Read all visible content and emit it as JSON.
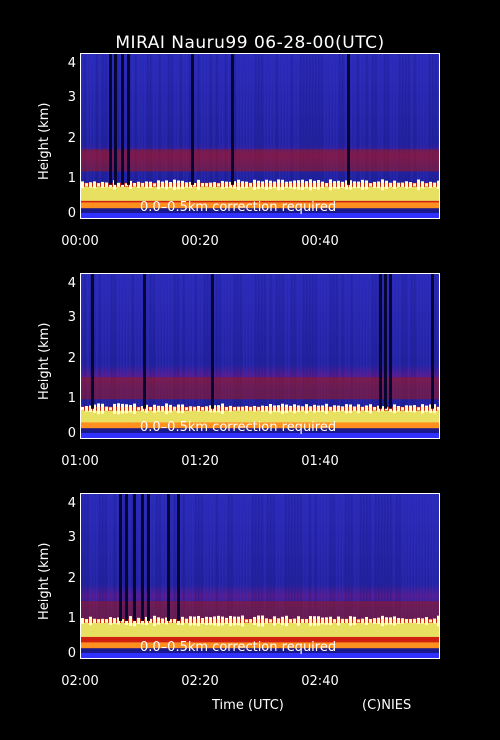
{
  "title": "MIRAI Nauru99 06-28-00(UTC)",
  "colors": {
    "background": "#000000",
    "axes": "#ffffff",
    "low_signal": "#1a1aa8",
    "mid_signal": "#c01010",
    "high_signal": "#ffffb0"
  },
  "chart_data": [
    {
      "type": "heatmap",
      "ylabel": "Height (km)",
      "ylim": [
        0,
        4.2
      ],
      "yticks": [
        "0",
        "1",
        "2",
        "3",
        "4"
      ],
      "xticks": [
        "00:00",
        "00:20",
        "00:40"
      ],
      "xlim_minutes": [
        0,
        60
      ],
      "annotation": "0.0–0.5km correction required",
      "cloud_layer_top_km": 0.9,
      "aerosol_layer_km": 1.5
    },
    {
      "type": "heatmap",
      "ylabel": "Height (km)",
      "ylim": [
        0,
        4.2
      ],
      "yticks": [
        "0",
        "1",
        "2",
        "3",
        "4"
      ],
      "xticks": [
        "01:00",
        "01:20",
        "01:40"
      ],
      "xlim_minutes": [
        60,
        120
      ],
      "annotation": "0.0–0.5km correction required",
      "cloud_layer_top_km": 0.8,
      "aerosol_layer_km": 1.3
    },
    {
      "type": "heatmap",
      "ylabel": "Height (km)",
      "ylim": [
        0,
        4.2
      ],
      "yticks": [
        "0",
        "1",
        "2",
        "3",
        "4"
      ],
      "xticks": [
        "02:00",
        "02:20",
        "02:40"
      ],
      "xlim_minutes": [
        120,
        180
      ],
      "annotation": "0.0–0.5km correction required",
      "cloud_layer_top_km": 1.0,
      "aerosol_layer_km": 1.2
    }
  ],
  "footer": {
    "xlabel": "Time (UTC)",
    "credit": "(C)NIES"
  }
}
